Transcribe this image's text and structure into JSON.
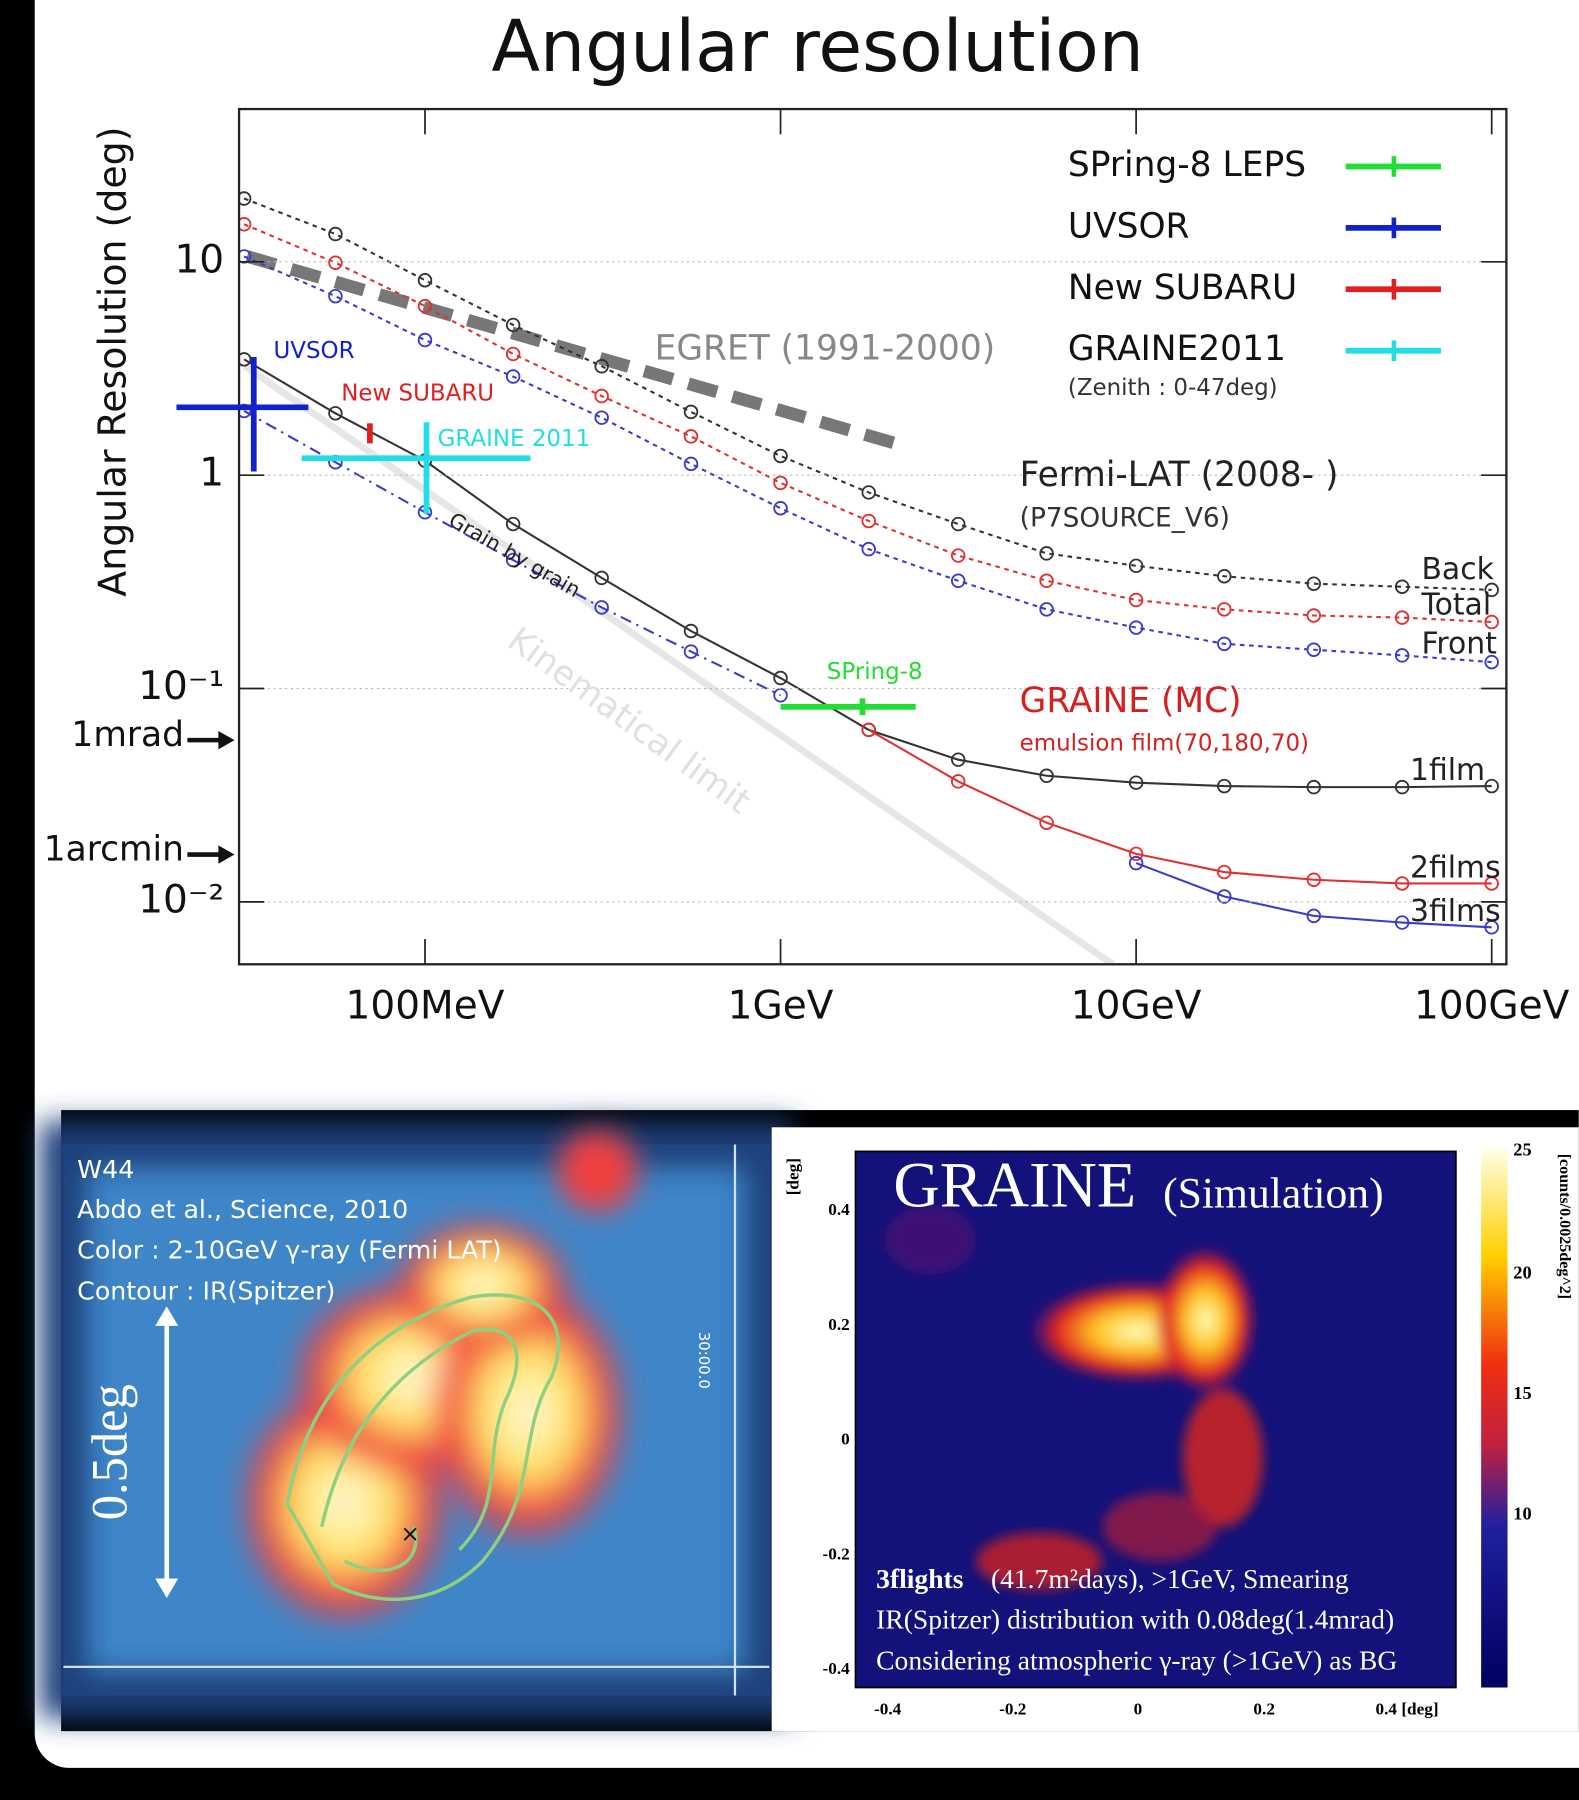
{
  "chart_data": {
    "type": "line",
    "title": "Angular resolution",
    "y_label": "Angular Resolution (deg)",
    "log_x": true,
    "log_y": true,
    "grid": true,
    "xlim": [
      30,
      110000
    ],
    "ylim": [
      0.0051,
      52
    ],
    "xticks": [
      {
        "value": 100,
        "label": "100MeV"
      },
      {
        "value": 1000,
        "label": "1GeV"
      },
      {
        "value": 10000,
        "label": "10GeV"
      },
      {
        "value": 100000,
        "label": "100GeV"
      }
    ],
    "yticks": [
      10,
      1,
      {
        "value": 0.1,
        "label": "10⁻¹"
      },
      {
        "value": 0.01,
        "label": "10⁻²"
      }
    ],
    "x": [
      31,
      56,
      100,
      177,
      314,
      560,
      1000,
      1770,
      3160,
      5600,
      10000,
      17700,
      31600,
      56000,
      100000
    ],
    "series": [
      {
        "name": "Back",
        "color": "#333333",
        "style": "dotted",
        "values": [
          19.8,
          13.5,
          8.2,
          5.06,
          3.24,
          1.98,
          1.23,
          0.83,
          0.59,
          0.43,
          0.376,
          0.336,
          0.31,
          0.3,
          0.29
        ]
      },
      {
        "name": "Total",
        "color": "#e03030",
        "style": "dotted",
        "values": [
          15,
          9.9,
          6.2,
          3.7,
          2.35,
          1.52,
          0.92,
          0.61,
          0.42,
          0.32,
          0.26,
          0.235,
          0.22,
          0.215,
          0.205
        ]
      },
      {
        "name": "Front",
        "color": "#3a3acc",
        "style": "dotted",
        "values": [
          10.6,
          6.9,
          4.3,
          2.9,
          1.86,
          1.13,
          0.7,
          0.45,
          0.32,
          0.235,
          0.193,
          0.162,
          0.152,
          0.143,
          0.133
        ]
      },
      {
        "name": "1film",
        "color": "#333333",
        "style": "solid",
        "values": [
          3.49,
          1.95,
          1.17,
          0.59,
          0.33,
          0.186,
          0.112,
          0.064,
          0.0464,
          0.039,
          0.0362,
          0.0349,
          0.0345,
          0.0345,
          0.0349
        ]
      },
      {
        "name": "2films",
        "color": "#e03030",
        "style": "solid",
        "values": [
          null,
          null,
          null,
          null,
          null,
          null,
          null,
          0.064,
          0.0367,
          0.0235,
          0.0168,
          0.0138,
          0.0127,
          0.0122,
          0.0122
        ]
      },
      {
        "name": "3films",
        "color": "#3a3acc",
        "style": "solid",
        "values": [
          null,
          null,
          null,
          null,
          null,
          null,
          null,
          null,
          null,
          null,
          0.0152,
          0.0106,
          0.0086,
          0.008,
          0.0076
        ]
      },
      {
        "name": "Grain by grain",
        "color": "#3a3acc",
        "style": "dashdot",
        "values": [
          2.0,
          1.15,
          0.67,
          0.4,
          0.24,
          0.149,
          0.093,
          null,
          null,
          null,
          null,
          null,
          null,
          null,
          null
        ]
      }
    ],
    "lines": [
      {
        "name": "EGRET (1991-2000)",
        "color": "#777777",
        "style": "dashed",
        "x": [
          31.6,
          2100
        ],
        "values": [
          10.6,
          1.41
        ]
      },
      {
        "name": "Kinematical limit",
        "color": "#e6e6e6",
        "style": "solid",
        "x": [
          31.2,
          8600
        ],
        "values": [
          3.24,
          0.0051
        ]
      }
    ],
    "error_bars": [
      {
        "name": "SPring-8 LEPS",
        "label": "SPring-8",
        "color": "#22dd33",
        "x": 1700,
        "y": 0.082,
        "xrange": [
          1000,
          2400
        ],
        "yrange": [
          0.075,
          0.09
        ]
      },
      {
        "name": "UVSOR",
        "label": "UVSOR",
        "color": "#1122cc",
        "x": 33,
        "y": 2.08,
        "xrange": [
          20,
          47
        ],
        "yrange": [
          1.04,
          3.58
        ]
      },
      {
        "name": "New SUBARU",
        "label": "New SUBARU",
        "color": "#e02020",
        "x": 70,
        "y": 1.6,
        "xrange": [
          69,
          71
        ],
        "yrange": [
          1.41,
          1.75
        ]
      },
      {
        "name": "GRAINE2011",
        "label": "GRAINE 2011",
        "note": "(Zenith : 0-47deg)",
        "color": "#22dde6",
        "x": 101,
        "y": 1.2,
        "xrange": [
          45,
          198
        ],
        "yrange": [
          0.66,
          1.77
        ]
      }
    ],
    "markers": [
      {
        "label": "1mrad",
        "value": 0.0573
      },
      {
        "label": "1arcmin",
        "value": 0.01667
      }
    ],
    "annotations": [
      "Fermi-LAT (2008- )",
      "(P7SOURCE_V6)",
      "GRAINE (MC)",
      "emulsion film(70,180,70)"
    ]
  },
  "left_image": {
    "lines": [
      "W44",
      "Abdo et al., Science, 2010",
      "Color : 2-10GeV γ-ray (Fermi LAT)",
      "Contour : IR(Spitzer)"
    ],
    "scale": "0.5deg",
    "coord": "30:00.0"
  },
  "right_image": {
    "title": "GRAINE",
    "subtitle": "(Simulation)",
    "y_unit": "[deg]",
    "yticks": [
      "0.4",
      "0.2",
      "0",
      "-0.2",
      "-0.4"
    ],
    "xticks": [
      "-0.4",
      "-0.2",
      "0",
      "0.2",
      "0.4 [deg]"
    ],
    "colorbar_ticks": [
      "25",
      "20",
      "15",
      "10"
    ],
    "colorbar_label": "[counts/0.0025deg^2]",
    "caption_bold": "3flights",
    "caption": [
      "(41.7m²days), >1GeV, Smearing",
      "IR(Spitzer) distribution with 0.08deg(1.4mrad)",
      "Considering  atmospheric γ-ray (>1GeV) as BG"
    ]
  }
}
